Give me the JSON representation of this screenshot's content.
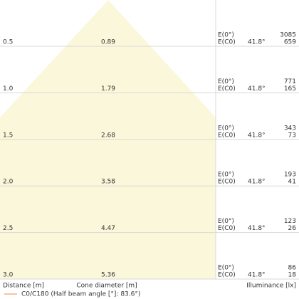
{
  "rows": [
    {
      "distance": "0.5",
      "diameter": "0.89",
      "label_e0": "E(0°)",
      "label_ec0": "E(C0)",
      "angle": "41.8°",
      "e0": "3085",
      "ec0": "659"
    },
    {
      "distance": "1.0",
      "diameter": "1.79",
      "label_e0": "E(0°)",
      "label_ec0": "E(C0)",
      "angle": "41.8°",
      "e0": "771",
      "ec0": "165"
    },
    {
      "distance": "1.5",
      "diameter": "2.68",
      "label_e0": "E(0°)",
      "label_ec0": "E(C0)",
      "angle": "41.8°",
      "e0": "343",
      "ec0": "73"
    },
    {
      "distance": "2.0",
      "diameter": "3.58",
      "label_e0": "E(0°)",
      "label_ec0": "E(C0)",
      "angle": "41.8°",
      "e0": "193",
      "ec0": "41"
    },
    {
      "distance": "2.5",
      "diameter": "4.47",
      "label_e0": "E(0°)",
      "label_ec0": "E(C0)",
      "angle": "41.8°",
      "e0": "123",
      "ec0": "26"
    },
    {
      "distance": "3.0",
      "diameter": "5.36",
      "label_e0": "E(0°)",
      "label_ec0": "E(C0)",
      "angle": "41.8°",
      "e0": "86",
      "ec0": "18"
    }
  ],
  "footer": {
    "distance": "Distance [m]",
    "diameter": "Cone diameter [m]",
    "illuminance": "Illuminance [lx]"
  },
  "legend": {
    "label": "C0/C180 (Half beam angle [°]: 83.6°)"
  }
}
